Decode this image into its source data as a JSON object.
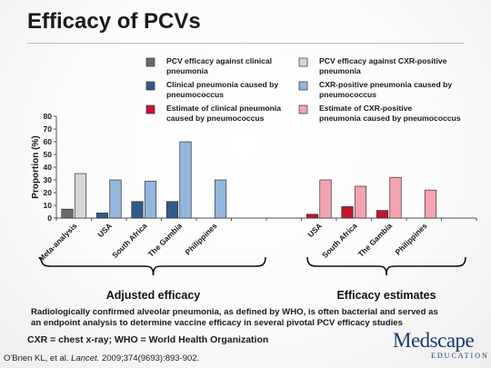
{
  "slide": {
    "title": "Efficacy of PCVs",
    "note": "Radiologically confirmed alveolar pneumonia, as defined by WHO, is often bacterial and served as an endpoint analysis to determine vaccine efficacy in several pivotal PCV efficacy studies",
    "abbreviations": "CXR = chest x-ray; WHO = World Health Organization",
    "citation_prefix": "O'Brien KL, et al. ",
    "citation_journal": "Lancet.",
    "citation_suffix": " 2009;374(9693):893-902.",
    "logo_main": "Medscape",
    "logo_sub": "EDUCATION"
  },
  "chart_data": {
    "type": "bar",
    "ylabel": "Proportion (%)",
    "ylim": [
      0,
      80
    ],
    "yticks": [
      0,
      10,
      20,
      30,
      40,
      50,
      60,
      70,
      80
    ],
    "grid": false,
    "legend": [
      {
        "key": "clin_eff",
        "label": "PCV efficacy against clinical pneumonia",
        "color": "#6b6b6b"
      },
      {
        "key": "cxr_eff",
        "label": "PCV efficacy against CXR-positive pneumonia",
        "color": "#d6d6d6"
      },
      {
        "key": "clin_pneumo",
        "label": "Clinical pneumonia caused by pneumococcus",
        "color": "#2f5b8c"
      },
      {
        "key": "cxr_pneumo",
        "label": "CXR-positive pneumonia caused by pneumococcus",
        "color": "#93b7de"
      },
      {
        "key": "est_clin",
        "label": "Estimate of clinical pneumonia caused by pneumococcus",
        "color": "#c4162e"
      },
      {
        "key": "est_cxr",
        "label": "Estimate of CXR-positive pneumonia caused by pneumococcus",
        "color": "#f4a3b1"
      }
    ],
    "groups": [
      {
        "label": "Adjusted efficacy",
        "categories": [
          {
            "name": "Meta-analysis",
            "bars": [
              {
                "series": "clin_eff",
                "value": 7
              },
              {
                "series": "cxr_eff",
                "value": 35
              }
            ]
          },
          {
            "name": "USA",
            "bars": [
              {
                "series": "clin_pneumo",
                "value": 4
              },
              {
                "series": "cxr_pneumo",
                "value": 30
              }
            ]
          },
          {
            "name": "South Africa",
            "bars": [
              {
                "series": "clin_pneumo",
                "value": 13
              },
              {
                "series": "cxr_pneumo",
                "value": 29
              }
            ]
          },
          {
            "name": "The Gambia",
            "bars": [
              {
                "series": "clin_pneumo",
                "value": 13
              },
              {
                "series": "cxr_pneumo",
                "value": 60
              }
            ]
          },
          {
            "name": "Philippines",
            "bars": [
              {
                "series": "clin_pneumo",
                "value": 0
              },
              {
                "series": "cxr_pneumo",
                "value": 30
              }
            ]
          }
        ]
      },
      {
        "label": "Efficacy estimates",
        "categories": [
          {
            "name": "USA",
            "bars": [
              {
                "series": "est_clin",
                "value": 3
              },
              {
                "series": "est_cxr",
                "value": 30
              }
            ]
          },
          {
            "name": "South Africa",
            "bars": [
              {
                "series": "est_clin",
                "value": 9
              },
              {
                "series": "est_cxr",
                "value": 25
              }
            ]
          },
          {
            "name": "The Gambia",
            "bars": [
              {
                "series": "est_clin",
                "value": 6
              },
              {
                "series": "est_cxr",
                "value": 32
              }
            ]
          },
          {
            "name": "Philippines",
            "bars": [
              {
                "series": "est_clin",
                "value": 0
              },
              {
                "series": "est_cxr",
                "value": 22
              }
            ]
          }
        ]
      }
    ]
  }
}
